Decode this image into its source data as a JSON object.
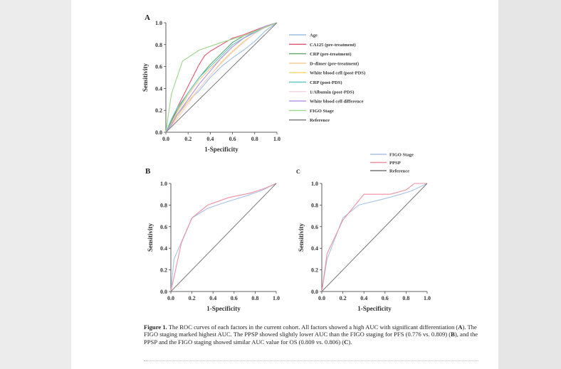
{
  "colors": {
    "age": "#9cc0e3",
    "ca125": "#e0556e",
    "crp_pre": "#5fa56b",
    "ddimer": "#f2c98a",
    "wbc_post": "#f5d46b",
    "crp_post": "#66c8c4",
    "alb_post": "#f4cfe0",
    "wbc_diff": "#b58fe0",
    "figo": "#9bd68b",
    "reference": "#777777",
    "figo_b": "#a8c3e6",
    "ppsp": "#ef8fa2"
  },
  "panels": {
    "a": {
      "label": "A",
      "ylabel": "Sensitivity",
      "xlabel": "1-Specificity"
    },
    "b": {
      "label": "B",
      "ylabel": "Sensitivity",
      "xlabel": "1-Specificity"
    },
    "c": {
      "label": "C",
      "ylabel": "Sensitivity",
      "xlabel": "1-Specificity"
    }
  },
  "legend_a": [
    "Age",
    "CA125 (pre-treatment)",
    "CRP (pre-treatment)",
    "D-dimer (pre-treatment)",
    "White blood cell (post-PDS)",
    "CRP (post-PDS)",
    "1/Albumin (post-PDS)",
    "White blood cell difference",
    "FIGO Stage",
    "Reference"
  ],
  "legend_bc": [
    "FIGO Stage",
    "PPSP",
    "Reference"
  ],
  "caption": {
    "lead": "Figure 1.",
    "text_1": " The ROC curves of each factors in the current cohort. All factors showed a high AUC with significant differentiation (",
    "ref_a": "A",
    "text_2": "). The FIGO staging marked highest AUC. The PPSP showed slightly lower AUC than the FIGO staging for PFS (0.776 vs. 0.809) (",
    "ref_b": "B",
    "text_3": "), and the PPSP and the FIGO staging showed similar AUC value for OS (0.809 vs. 0.806) (",
    "ref_c": "C",
    "text_4": ")."
  },
  "chart_data": [
    {
      "type": "line",
      "panel": "A",
      "xlabel": "1-Specificity",
      "ylabel": "Sensitivity",
      "xlim": [
        0,
        1
      ],
      "ylim": [
        0,
        1
      ],
      "xticks": [
        "0.0",
        "0.2",
        "0.4",
        "0.6",
        "0.8",
        "1.0"
      ],
      "yticks": [
        "0.0",
        "0.2",
        "0.4",
        "0.6",
        "0.8",
        "1.0"
      ],
      "legend": "right",
      "series": [
        {
          "name": "Age",
          "color_key": "age",
          "x": [
            0,
            0.05,
            0.1,
            0.2,
            0.3,
            0.4,
            0.5,
            0.6,
            0.7,
            0.8,
            0.9,
            1
          ],
          "y": [
            0,
            0.08,
            0.16,
            0.28,
            0.38,
            0.5,
            0.6,
            0.68,
            0.75,
            0.83,
            0.93,
            1
          ]
        },
        {
          "name": "CA125 (pre-treatment)",
          "color_key": "ca125",
          "x": [
            0,
            0.05,
            0.1,
            0.2,
            0.3,
            0.35,
            0.4,
            0.5,
            0.6,
            0.7,
            0.8,
            0.9,
            1
          ],
          "y": [
            0,
            0.1,
            0.22,
            0.42,
            0.62,
            0.7,
            0.74,
            0.8,
            0.86,
            0.89,
            0.93,
            0.97,
            1
          ]
        },
        {
          "name": "CRP (pre-treatment)",
          "color_key": "crp_pre",
          "x": [
            0,
            0.05,
            0.1,
            0.2,
            0.3,
            0.4,
            0.5,
            0.6,
            0.7,
            0.8,
            0.9,
            1
          ],
          "y": [
            0,
            0.1,
            0.2,
            0.36,
            0.5,
            0.62,
            0.72,
            0.82,
            0.88,
            0.92,
            0.96,
            1
          ]
        },
        {
          "name": "D-dimer (pre-treatment)",
          "color_key": "ddimer",
          "x": [
            0,
            0.05,
            0.1,
            0.2,
            0.3,
            0.4,
            0.5,
            0.6,
            0.7,
            0.8,
            0.9,
            1
          ],
          "y": [
            0,
            0.08,
            0.18,
            0.34,
            0.48,
            0.58,
            0.68,
            0.78,
            0.86,
            0.92,
            0.97,
            1
          ]
        },
        {
          "name": "White blood cell (post-PDS)",
          "color_key": "wbc_post",
          "x": [
            0,
            0.05,
            0.1,
            0.2,
            0.3,
            0.4,
            0.5,
            0.6,
            0.7,
            0.8,
            0.9,
            1
          ],
          "y": [
            0,
            0.06,
            0.14,
            0.28,
            0.4,
            0.52,
            0.64,
            0.74,
            0.83,
            0.9,
            0.96,
            1
          ]
        },
        {
          "name": "CRP (post-PDS)",
          "color_key": "crp_post",
          "x": [
            0,
            0.05,
            0.1,
            0.2,
            0.3,
            0.4,
            0.5,
            0.6,
            0.7,
            0.8,
            0.9,
            1
          ],
          "y": [
            0,
            0.12,
            0.22,
            0.36,
            0.5,
            0.6,
            0.7,
            0.8,
            0.86,
            0.91,
            0.96,
            1
          ]
        },
        {
          "name": "1/Albumin (post-PDS)",
          "color_key": "alb_post",
          "x": [
            0,
            0.05,
            0.1,
            0.2,
            0.3,
            0.4,
            0.5,
            0.6,
            0.7,
            0.8,
            0.9,
            1
          ],
          "y": [
            0,
            0.06,
            0.12,
            0.26,
            0.4,
            0.52,
            0.63,
            0.73,
            0.82,
            0.9,
            0.96,
            1
          ]
        },
        {
          "name": "White blood cell difference",
          "color_key": "wbc_diff",
          "x": [
            0,
            0.05,
            0.1,
            0.2,
            0.3,
            0.4,
            0.5,
            0.6,
            0.7,
            0.8,
            0.9,
            1
          ],
          "y": [
            0,
            0.07,
            0.16,
            0.3,
            0.44,
            0.56,
            0.68,
            0.78,
            0.86,
            0.92,
            0.97,
            1
          ]
        },
        {
          "name": "FIGO Stage",
          "color_key": "figo",
          "x": [
            0,
            0.05,
            0.15,
            0.3,
            0.5,
            0.7,
            0.8,
            1
          ],
          "y": [
            0,
            0.35,
            0.65,
            0.75,
            0.82,
            0.88,
            0.92,
            1
          ]
        },
        {
          "name": "Reference",
          "color_key": "reference",
          "x": [
            0,
            1
          ],
          "y": [
            0,
            1
          ]
        }
      ]
    },
    {
      "type": "line",
      "panel": "B",
      "xlabel": "1-Specificity",
      "ylabel": "Sensitivity",
      "xlim": [
        0,
        1
      ],
      "ylim": [
        0,
        1
      ],
      "xticks": [
        "0.0",
        "0.2",
        "0.4",
        "0.6",
        "0.8",
        "1.0"
      ],
      "yticks": [
        "0.0",
        "0.2",
        "0.4",
        "0.6",
        "0.8",
        "1.0"
      ],
      "legend": "top-right",
      "series": [
        {
          "name": "FIGO Stage",
          "color_key": "figo_b",
          "x": [
            0,
            0.03,
            0.2,
            0.35,
            0.5,
            0.7,
            0.85,
            1
          ],
          "y": [
            0,
            0.3,
            0.68,
            0.77,
            0.82,
            0.88,
            0.93,
            1
          ]
        },
        {
          "name": "PPSP",
          "color_key": "ppsp",
          "x": [
            0,
            0.1,
            0.2,
            0.35,
            0.55,
            0.75,
            0.88,
            1
          ],
          "y": [
            0,
            0.45,
            0.68,
            0.8,
            0.87,
            0.91,
            0.95,
            1
          ]
        },
        {
          "name": "Reference",
          "color_key": "reference",
          "x": [
            0,
            1
          ],
          "y": [
            0,
            1
          ]
        }
      ]
    },
    {
      "type": "line",
      "panel": "C",
      "xlabel": "1-Specificity",
      "ylabel": "Sensitivity",
      "xlim": [
        0,
        1
      ],
      "ylim": [
        0,
        1
      ],
      "xticks": [
        "0.0",
        "0.2",
        "0.4",
        "0.6",
        "0.8",
        "1.0"
      ],
      "yticks": [
        "0.0",
        "0.2",
        "0.4",
        "0.6",
        "0.8",
        "1.0"
      ],
      "legend": "top-right",
      "series": [
        {
          "name": "FIGO Stage",
          "color_key": "figo_b",
          "x": [
            0,
            0.05,
            0.2,
            0.35,
            0.6,
            0.75,
            0.85,
            1
          ],
          "y": [
            0,
            0.3,
            0.68,
            0.8,
            0.86,
            0.9,
            0.93,
            1
          ]
        },
        {
          "name": "PPSP",
          "color_key": "ppsp",
          "x": [
            0,
            0.05,
            0.2,
            0.4,
            0.65,
            0.8,
            0.88,
            1
          ],
          "y": [
            0,
            0.35,
            0.66,
            0.9,
            0.9,
            0.94,
            1,
            1
          ]
        },
        {
          "name": "Reference",
          "color_key": "reference",
          "x": [
            0,
            1
          ],
          "y": [
            0,
            1
          ]
        }
      ]
    }
  ]
}
